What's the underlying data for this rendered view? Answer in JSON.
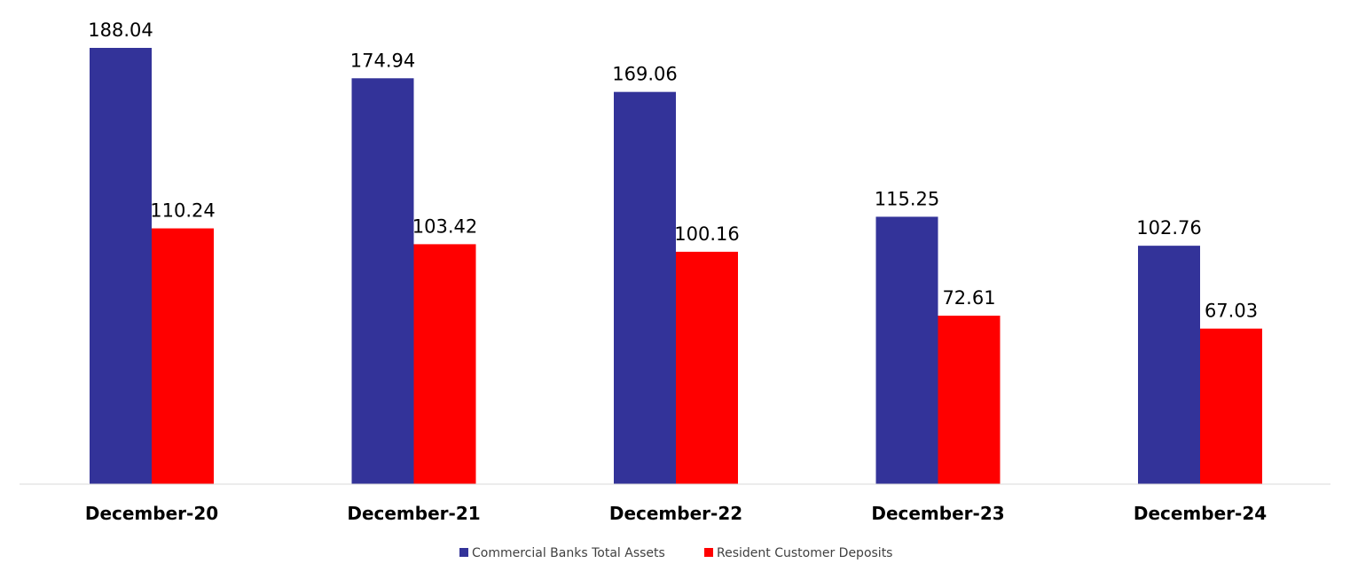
{
  "chart_data": {
    "type": "bar",
    "categories": [
      "December-20",
      "December-21",
      "December-22",
      "December-23",
      "December-24"
    ],
    "series": [
      {
        "name": "Commercial Banks Total Assets",
        "color": "#333399",
        "values": [
          188.04,
          174.94,
          169.06,
          115.25,
          102.76
        ]
      },
      {
        "name": "Resident Customer Deposits",
        "color": "#ff0000",
        "values": [
          110.24,
          103.42,
          100.16,
          72.61,
          67.03
        ]
      }
    ],
    "data_labels": true,
    "ylim": [
      0,
      200
    ],
    "grid": false,
    "legend_position": "bottom"
  }
}
